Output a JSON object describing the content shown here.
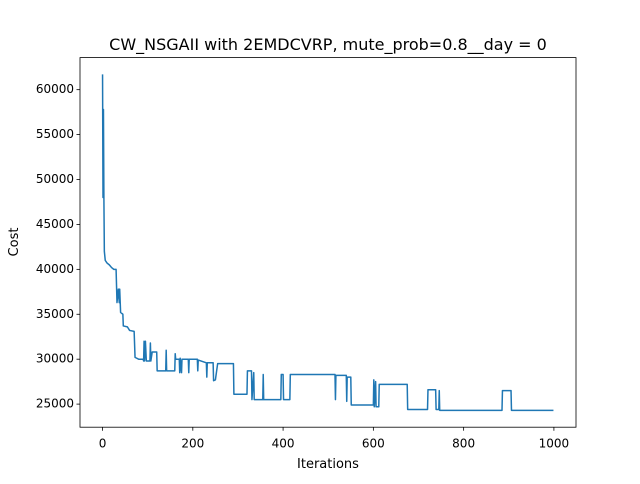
{
  "chart_data": {
    "type": "line",
    "title": "CW_NSGAII with 2EMDCVRP, mute_prob=0.8__day = 0",
    "x_label": "Iterations",
    "y_label": "Cost",
    "x": [
      0,
      1,
      2,
      3,
      4,
      6,
      10,
      15,
      20,
      25,
      30,
      32,
      35,
      37,
      38,
      40,
      45,
      46,
      55,
      60,
      70,
      72,
      80,
      90,
      91,
      92,
      93,
      95,
      97,
      105,
      106,
      107,
      110,
      120,
      121,
      140,
      141,
      142,
      160,
      161,
      162,
      170,
      171,
      172,
      175,
      176,
      190,
      191,
      192,
      210,
      211,
      212,
      230,
      231,
      232,
      245,
      246,
      250,
      255,
      290,
      291,
      320,
      321,
      330,
      331,
      335,
      336,
      355,
      356,
      357,
      395,
      396,
      400,
      401,
      415,
      416,
      515,
      516,
      517,
      540,
      541,
      542,
      550,
      551,
      600,
      601,
      602,
      605,
      606,
      612,
      613,
      675,
      676,
      720,
      721,
      738,
      739,
      745,
      746,
      747,
      885,
      886,
      905,
      906,
      999
    ],
    "series": [
      {
        "name": "Cost",
        "color": "#1f77b4",
        "values": [
          61700,
          48000,
          57800,
          47900,
          42000,
          41000,
          40700,
          40500,
          40200,
          40000,
          40000,
          36300,
          37800,
          36300,
          37800,
          35200,
          35000,
          33700,
          33600,
          33200,
          33100,
          30200,
          30000,
          30000,
          29800,
          32000,
          29800,
          32000,
          29800,
          29800,
          31800,
          29800,
          30800,
          30800,
          28700,
          28700,
          31000,
          28700,
          28700,
          30600,
          30000,
          30000,
          28500,
          30100,
          28500,
          30000,
          30000,
          28500,
          30000,
          30000,
          28700,
          29900,
          29600,
          28000,
          29600,
          29600,
          27600,
          27700,
          29500,
          29500,
          26100,
          26100,
          28700,
          28700,
          25500,
          28500,
          25500,
          25500,
          28300,
          25500,
          25500,
          28300,
          28300,
          25500,
          25500,
          28300,
          28300,
          25500,
          28200,
          28200,
          25300,
          28000,
          28000,
          24900,
          24900,
          27700,
          24700,
          27500,
          24700,
          24700,
          27200,
          27200,
          24400,
          24400,
          26600,
          26600,
          24400,
          24400,
          26500,
          24300,
          24300,
          26500,
          26500,
          24300,
          24300
        ]
      }
    ],
    "xlim": [
      -49.95,
      1048.95
    ],
    "xticks": [
      0,
      200,
      400,
      600,
      800,
      1000
    ],
    "ylim": [
      22430,
      63570
    ],
    "yticks": [
      25000,
      30000,
      35000,
      40000,
      45000,
      50000,
      55000,
      60000
    ],
    "grid": false
  }
}
